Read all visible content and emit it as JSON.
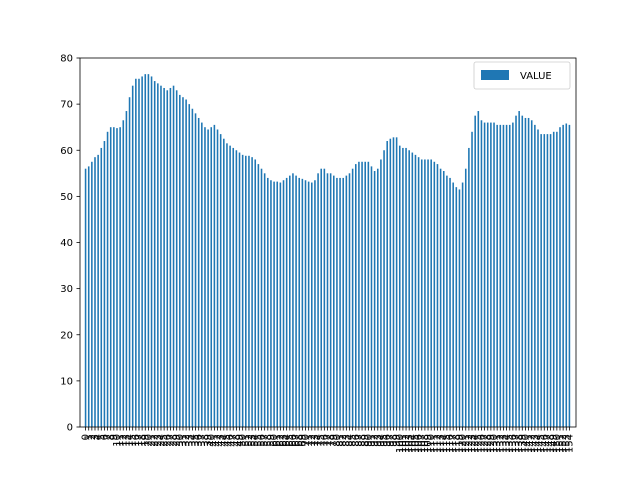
{
  "chart_data": {
    "type": "bar",
    "title": "",
    "xlabel": "",
    "ylabel": "",
    "ylim": [
      0,
      80
    ],
    "yticks": [
      0,
      10,
      20,
      30,
      40,
      50,
      60,
      70,
      80
    ],
    "grid": false,
    "legend_position": "top-right",
    "bar_color": "#1f77b4",
    "series": [
      {
        "name": "VALUE",
        "values": [
          56.0,
          56.5,
          57.5,
          58.5,
          59.0,
          60.5,
          62.0,
          64.0,
          65.0,
          65.0,
          64.8,
          65.0,
          66.5,
          68.5,
          71.5,
          74.0,
          75.5,
          75.5,
          76.0,
          76.5,
          76.5,
          76.0,
          75.0,
          74.5,
          74.0,
          73.5,
          73.0,
          73.5,
          74.0,
          73.0,
          72.0,
          71.5,
          71.0,
          70.0,
          69.0,
          68.0,
          67.0,
          66.0,
          65.0,
          64.5,
          65.0,
          65.5,
          64.5,
          63.5,
          62.5,
          61.5,
          61.0,
          60.5,
          60.0,
          59.5,
          59.0,
          58.8,
          58.8,
          58.5,
          58.0,
          57.0,
          56.0,
          55.0,
          54.0,
          53.5,
          53.2,
          53.2,
          53.0,
          53.5,
          54.0,
          54.5,
          55.0,
          54.5,
          54.0,
          53.8,
          53.5,
          53.2,
          53.0,
          53.5,
          55.0,
          56.0,
          56.0,
          55.0,
          55.0,
          54.5,
          54.0,
          54.0,
          54.0,
          54.5,
          55.0,
          56.0,
          57.0,
          57.5,
          57.5,
          57.5,
          57.5,
          56.5,
          55.5,
          56.0,
          58.0,
          60.0,
          62.0,
          62.5,
          62.8,
          62.8,
          61.0,
          60.5,
          60.5,
          60.0,
          59.5,
          59.0,
          58.5,
          58.0,
          58.0,
          58.0,
          58.0,
          57.5,
          57.0,
          56.0,
          55.5,
          54.5,
          54.0,
          53.0,
          52.0,
          51.5,
          53.0,
          56.0,
          60.5,
          64.0,
          67.5,
          68.5,
          66.5,
          66.0,
          66.0,
          66.0,
          66.0,
          65.5,
          65.5,
          65.5,
          65.5,
          65.5,
          66.0,
          67.5,
          68.5,
          67.5,
          67.0,
          67.0,
          66.5,
          65.5,
          64.5,
          63.5,
          63.5,
          63.5,
          63.5,
          64.0,
          64.0,
          65.0,
          65.5,
          65.8,
          65.5
        ]
      }
    ]
  }
}
